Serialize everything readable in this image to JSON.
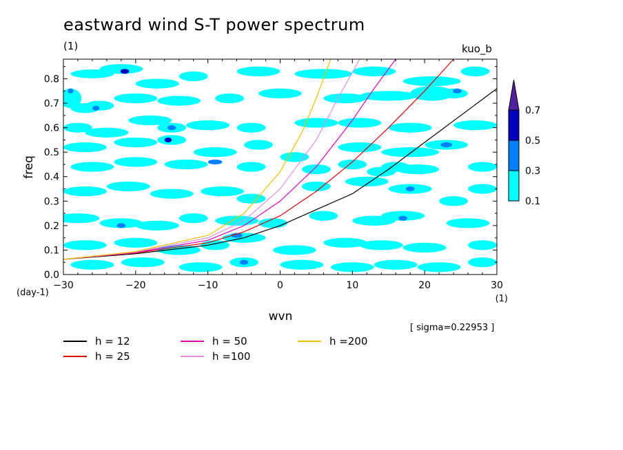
{
  "title": "eastward wind S-T power spectrum",
  "subtitle": "(1)",
  "tag": "kuo_b",
  "sigma_text": "[ sigma=0.22953 ]",
  "chart_data": {
    "type": "contour",
    "xlabel": "wvn",
    "ylabel": "freq",
    "x_unit": "(1)",
    "y_unit": "(day-1)",
    "xlim": [
      -30,
      30
    ],
    "ylim": [
      0,
      0.88
    ],
    "xticks": [
      -30,
      -20,
      -10,
      0,
      10,
      20,
      30
    ],
    "yticks": [
      0.0,
      0.1,
      0.2,
      0.3,
      0.4,
      0.5,
      0.6,
      0.7,
      0.8
    ],
    "colorbar": {
      "levels": [
        "0.1",
        "0.3",
        "0.5",
        "0.7"
      ],
      "colors": [
        "#00ffff",
        "#0080ff",
        "#0000c0",
        "#5020a0"
      ]
    },
    "curves": [
      {
        "name": "h = 12",
        "color": "#000000",
        "points": [
          [
            -30,
            0.062
          ],
          [
            -20,
            0.085
          ],
          [
            -10,
            0.12
          ],
          [
            -5,
            0.15
          ],
          [
            0,
            0.2
          ],
          [
            5,
            0.265
          ],
          [
            10,
            0.33
          ],
          [
            15,
            0.43
          ],
          [
            20,
            0.54
          ],
          [
            25,
            0.65
          ],
          [
            30,
            0.76
          ]
        ]
      },
      {
        "name": "h = 25",
        "color": "#e00000",
        "points": [
          [
            -30,
            0.062
          ],
          [
            -20,
            0.088
          ],
          [
            -10,
            0.13
          ],
          [
            -5,
            0.175
          ],
          [
            0,
            0.24
          ],
          [
            5,
            0.34
          ],
          [
            10,
            0.46
          ],
          [
            15,
            0.6
          ],
          [
            20,
            0.75
          ],
          [
            24,
            0.88
          ]
        ]
      },
      {
        "name": "h = 50",
        "color": "#e000c0",
        "points": [
          [
            -30,
            0.062
          ],
          [
            -20,
            0.09
          ],
          [
            -10,
            0.14
          ],
          [
            -5,
            0.2
          ],
          [
            0,
            0.3
          ],
          [
            5,
            0.44
          ],
          [
            10,
            0.63
          ],
          [
            13,
            0.76
          ],
          [
            16,
            0.88
          ]
        ]
      },
      {
        "name": "h =100",
        "color": "#e090e0",
        "points": [
          [
            -30,
            0.062
          ],
          [
            -20,
            0.092
          ],
          [
            -10,
            0.15
          ],
          [
            -5,
            0.22
          ],
          [
            0,
            0.35
          ],
          [
            5,
            0.55
          ],
          [
            8,
            0.72
          ],
          [
            11,
            0.88
          ]
        ]
      },
      {
        "name": "h =200",
        "color": "#f0c000",
        "points": [
          [
            -30,
            0.062
          ],
          [
            -20,
            0.094
          ],
          [
            -10,
            0.16
          ],
          [
            -5,
            0.25
          ],
          [
            0,
            0.42
          ],
          [
            3,
            0.58
          ],
          [
            5,
            0.72
          ],
          [
            7,
            0.88
          ]
        ]
      }
    ],
    "blobs": [
      [
        -26,
        0.82,
        3,
        0.018,
        1
      ],
      [
        -22,
        0.84,
        3,
        0.02,
        1
      ],
      [
        -21.5,
        0.83,
        0.6,
        0.01,
        3
      ],
      [
        -17,
        0.78,
        3,
        0.02,
        1
      ],
      [
        -12,
        0.81,
        2,
        0.02,
        1
      ],
      [
        -3,
        0.83,
        3,
        0.02,
        1
      ],
      [
        6,
        0.82,
        4,
        0.02,
        1
      ],
      [
        13,
        0.83,
        3,
        0.02,
        1
      ],
      [
        21,
        0.79,
        4,
        0.02,
        1
      ],
      [
        27,
        0.83,
        2,
        0.02,
        1
      ],
      [
        -29,
        0.72,
        1.5,
        0.04,
        1
      ],
      [
        -29,
        0.75,
        0.4,
        0.01,
        2
      ],
      [
        -27,
        0.68,
        2,
        0.02,
        1
      ],
      [
        -25,
        0.69,
        2,
        0.02,
        1
      ],
      [
        -25.5,
        0.68,
        0.5,
        0.01,
        2
      ],
      [
        -20,
        0.72,
        3,
        0.02,
        1
      ],
      [
        -14,
        0.71,
        3,
        0.02,
        1
      ],
      [
        -7,
        0.72,
        2,
        0.02,
        1
      ],
      [
        0,
        0.74,
        3,
        0.02,
        1
      ],
      [
        9,
        0.72,
        3,
        0.02,
        1
      ],
      [
        15,
        0.73,
        4,
        0.02,
        1
      ],
      [
        21,
        0.74,
        3,
        0.03,
        1
      ],
      [
        24,
        0.74,
        2,
        0.02,
        1
      ],
      [
        24.5,
        0.75,
        0.6,
        0.01,
        2
      ],
      [
        -28,
        0.6,
        2,
        0.02,
        1
      ],
      [
        -24,
        0.58,
        3,
        0.02,
        1
      ],
      [
        -18,
        0.63,
        3,
        0.02,
        1
      ],
      [
        -15,
        0.6,
        2,
        0.02,
        1
      ],
      [
        -15,
        0.6,
        0.6,
        0.01,
        2
      ],
      [
        -10,
        0.61,
        3,
        0.02,
        1
      ],
      [
        -4,
        0.6,
        2,
        0.02,
        1
      ],
      [
        5,
        0.62,
        3,
        0.02,
        1
      ],
      [
        11,
        0.62,
        3,
        0.02,
        1
      ],
      [
        18,
        0.6,
        3,
        0.02,
        1
      ],
      [
        27,
        0.61,
        3,
        0.02,
        1
      ],
      [
        -27,
        0.52,
        3,
        0.02,
        1
      ],
      [
        -20,
        0.54,
        3,
        0.02,
        1
      ],
      [
        -15,
        0.55,
        2,
        0.02,
        1
      ],
      [
        -15.5,
        0.55,
        0.5,
        0.01,
        3
      ],
      [
        -9,
        0.5,
        3,
        0.02,
        1
      ],
      [
        -3,
        0.53,
        2,
        0.02,
        1
      ],
      [
        2,
        0.48,
        2,
        0.02,
        1
      ],
      [
        11,
        0.52,
        3,
        0.02,
        1
      ],
      [
        18,
        0.5,
        4,
        0.02,
        1
      ],
      [
        23,
        0.53,
        3,
        0.02,
        1
      ],
      [
        23,
        0.53,
        0.8,
        0.01,
        2
      ],
      [
        -26,
        0.44,
        3,
        0.02,
        1
      ],
      [
        -20,
        0.46,
        3,
        0.02,
        1
      ],
      [
        -13,
        0.45,
        3,
        0.02,
        1
      ],
      [
        -9,
        0.46,
        1,
        0.01,
        2
      ],
      [
        -4,
        0.44,
        2,
        0.02,
        1
      ],
      [
        5,
        0.43,
        2,
        0.02,
        1
      ],
      [
        10,
        0.45,
        2,
        0.02,
        1
      ],
      [
        14,
        0.42,
        2,
        0.02,
        1
      ],
      [
        16,
        0.44,
        2,
        0.02,
        1
      ],
      [
        19,
        0.43,
        3,
        0.02,
        1
      ],
      [
        28,
        0.44,
        2,
        0.02,
        1
      ],
      [
        -27,
        0.34,
        3,
        0.02,
        1
      ],
      [
        -21,
        0.36,
        3,
        0.02,
        1
      ],
      [
        -15,
        0.33,
        3,
        0.02,
        1
      ],
      [
        -8,
        0.34,
        3,
        0.02,
        1
      ],
      [
        -4,
        0.31,
        2,
        0.02,
        1
      ],
      [
        5,
        0.36,
        2,
        0.02,
        1
      ],
      [
        12,
        0.38,
        3,
        0.02,
        1
      ],
      [
        18,
        0.35,
        3,
        0.02,
        1
      ],
      [
        18,
        0.35,
        0.6,
        0.01,
        2
      ],
      [
        24,
        0.3,
        2,
        0.02,
        1
      ],
      [
        28,
        0.35,
        2,
        0.02,
        1
      ],
      [
        -28,
        0.23,
        3,
        0.02,
        1
      ],
      [
        -22,
        0.21,
        3,
        0.02,
        1
      ],
      [
        -22,
        0.2,
        0.6,
        0.01,
        2
      ],
      [
        -17,
        0.2,
        3,
        0.02,
        1
      ],
      [
        -12,
        0.23,
        2,
        0.02,
        1
      ],
      [
        -6,
        0.22,
        3,
        0.02,
        1
      ],
      [
        -1,
        0.21,
        2,
        0.02,
        1
      ],
      [
        6,
        0.24,
        2,
        0.02,
        1
      ],
      [
        13,
        0.22,
        3,
        0.02,
        1
      ],
      [
        17,
        0.24,
        3,
        0.02,
        1
      ],
      [
        17,
        0.23,
        0.6,
        0.01,
        2
      ],
      [
        26,
        0.21,
        3,
        0.02,
        1
      ],
      [
        -27,
        0.12,
        3,
        0.02,
        1
      ],
      [
        -20,
        0.13,
        3,
        0.02,
        1
      ],
      [
        -14,
        0.1,
        3,
        0.02,
        1
      ],
      [
        -9,
        0.12,
        2,
        0.02,
        1
      ],
      [
        -5,
        0.15,
        3,
        0.02,
        1
      ],
      [
        -6,
        0.16,
        0.8,
        0.01,
        2
      ],
      [
        2,
        0.1,
        3,
        0.02,
        1
      ],
      [
        9,
        0.13,
        3,
        0.02,
        1
      ],
      [
        14,
        0.12,
        3,
        0.02,
        1
      ],
      [
        20,
        0.11,
        3,
        0.02,
        1
      ],
      [
        28,
        0.12,
        2,
        0.02,
        1
      ],
      [
        -26,
        0.04,
        3,
        0.02,
        1
      ],
      [
        -19,
        0.05,
        3,
        0.02,
        1
      ],
      [
        -11,
        0.03,
        3,
        0.02,
        1
      ],
      [
        -5,
        0.05,
        2,
        0.02,
        1
      ],
      [
        -5,
        0.05,
        0.6,
        0.01,
        2
      ],
      [
        3,
        0.04,
        3,
        0.02,
        1
      ],
      [
        10,
        0.03,
        3,
        0.02,
        1
      ],
      [
        16,
        0.04,
        3,
        0.02,
        1
      ],
      [
        22,
        0.03,
        3,
        0.02,
        1
      ],
      [
        28,
        0.05,
        2,
        0.02,
        1
      ]
    ]
  },
  "legend": [
    {
      "label": "h = 12",
      "color": "#000000"
    },
    {
      "label": "h = 25",
      "color": "#e00000"
    },
    {
      "label": "h = 50",
      "color": "#e000c0"
    },
    {
      "label": "h =100",
      "color": "#e090e0"
    },
    {
      "label": "h =200",
      "color": "#f0c000"
    }
  ]
}
